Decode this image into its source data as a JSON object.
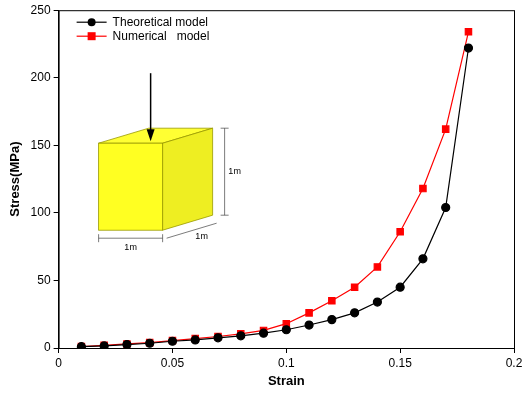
{
  "chart_data": {
    "type": "line",
    "x_label": "Strain",
    "y_label": "Stress(MPa)",
    "x": [
      0.01,
      0.02,
      0.03,
      0.04,
      0.05,
      0.06,
      0.07,
      0.08,
      0.09,
      0.1,
      0.11,
      0.12,
      0.13,
      0.14,
      0.15,
      0.16,
      0.17,
      0.18
    ],
    "series": [
      {
        "name": "Theoretical model",
        "color": "#000000",
        "marker": "circle",
        "line_style": "solid",
        "values": [
          1,
          1.5,
          2.5,
          3.5,
          5,
          6,
          7.5,
          9,
          11,
          13.5,
          17,
          21,
          26,
          34,
          45,
          66,
          104,
          222
        ]
      },
      {
        "name": "Numerical   model",
        "color": "#ff0000",
        "marker": "square",
        "line_style": "solid",
        "values": [
          1,
          2,
          3,
          4,
          5.5,
          7,
          8.5,
          10.5,
          13,
          18,
          26,
          35,
          45,
          60,
          86,
          118,
          162,
          234
        ]
      }
    ],
    "xlim": [
      0,
      0.2
    ],
    "xticks": [
      0,
      0.05,
      0.1,
      0.15,
      0.2
    ],
    "ylim": [
      0,
      250
    ],
    "yticks": [
      0,
      50,
      100,
      150,
      200,
      250
    ],
    "grid": false,
    "legend": "upper left",
    "annotations": [
      "1m",
      "1m",
      "1m"
    ]
  }
}
